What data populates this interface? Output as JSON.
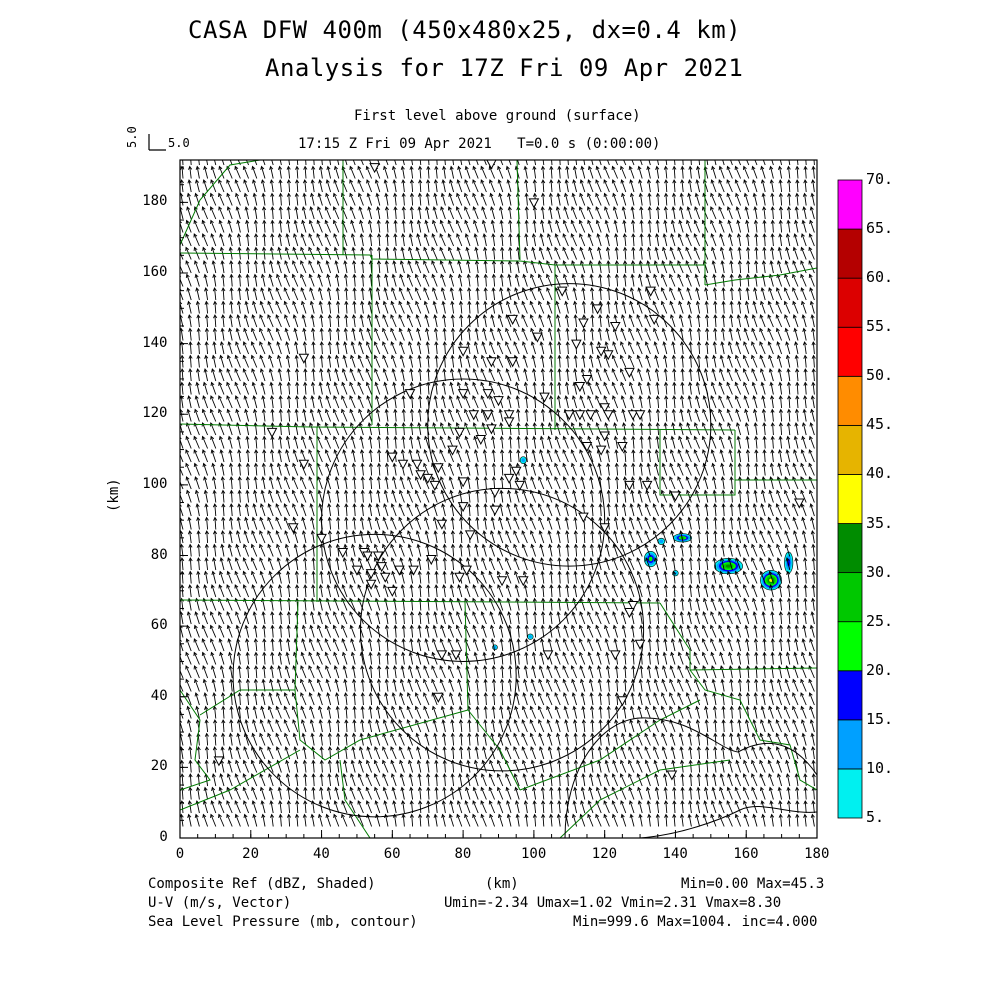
{
  "header": {
    "title_line1": "CASA DFW 400m (450x480x25, dx=0.4 km)",
    "title_line2": "Analysis for 17Z Fri 09 Apr 2021",
    "subtitle": "First level above ground (surface)",
    "time_line": "17:15 Z Fri 09 Apr 2021   T=0.0 s (0:00:00)",
    "vector_scale_label": "5.0",
    "vector_scale_value": "5.0"
  },
  "axes": {
    "xlabel": "(km)",
    "ylabel": "(km)",
    "x_ticks": [
      "0",
      "20",
      "40",
      "60",
      "80",
      "100",
      "120",
      "140",
      "160",
      "180"
    ],
    "y_ticks": [
      "0",
      "20",
      "40",
      "60",
      "80",
      "100",
      "120",
      "140",
      "160",
      "180"
    ],
    "x_range": [
      0,
      180
    ],
    "y_range": [
      0,
      192
    ]
  },
  "colorbar": {
    "labels": [
      "5.",
      "10.",
      "15.",
      "20.",
      "25.",
      "30.",
      "35.",
      "40.",
      "45.",
      "50.",
      "55.",
      "60.",
      "65.",
      "70."
    ],
    "colors": [
      "#00f0f0",
      "#00a0ff",
      "#0000ff",
      "#00ff00",
      "#00c800",
      "#008c00",
      "#ffff00",
      "#e6b400",
      "#ff8c00",
      "#ff0000",
      "#dc0000",
      "#b40000",
      "#ff00ff"
    ]
  },
  "footer": {
    "left1": "Composite Ref (dBZ, Shaded)",
    "left2": "U-V (m/s, Vector)",
    "left3": "Sea Level Pressure (mb, contour)",
    "center": "(km)",
    "right1": "Min=0.00 Max=45.3",
    "right2": "Umin=-2.34 Umax=1.02 Vmin=2.31 Vmax=8.30",
    "right3": "Min=999.6 Max=1004. inc=4.000"
  },
  "map_data": {
    "radar_rings": [
      {
        "cx": 110,
        "cy": 117,
        "r": 40
      },
      {
        "cx": 80,
        "cy": 90,
        "r": 40
      },
      {
        "cx": 91,
        "cy": 59,
        "r": 40
      },
      {
        "cx": 55,
        "cy": 46,
        "r": 40
      }
    ],
    "echoes": [
      {
        "x": 97,
        "y": 107,
        "rx": 0.9,
        "ry": 1.0,
        "level": 1
      },
      {
        "x": 133,
        "y": 79,
        "rx": 1.8,
        "ry": 2.2,
        "level": 3
      },
      {
        "x": 136,
        "y": 84,
        "rx": 1.0,
        "ry": 0.9,
        "level": 1
      },
      {
        "x": 142,
        "y": 85,
        "rx": 2.6,
        "ry": 1.2,
        "level": 4
      },
      {
        "x": 140,
        "y": 75,
        "rx": 0.8,
        "ry": 0.8,
        "level": 1
      },
      {
        "x": 155,
        "y": 77,
        "rx": 4.0,
        "ry": 2.2,
        "level": 5
      },
      {
        "x": 167,
        "y": 73,
        "rx": 3.0,
        "ry": 2.8,
        "level": 6
      },
      {
        "x": 172,
        "y": 78,
        "rx": 1.2,
        "ry": 3.0,
        "level": 2
      },
      {
        "x": 99,
        "y": 57,
        "rx": 0.8,
        "ry": 0.8,
        "level": 1
      },
      {
        "x": 89,
        "y": 54,
        "rx": 0.7,
        "ry": 0.7,
        "level": 1
      }
    ]
  }
}
